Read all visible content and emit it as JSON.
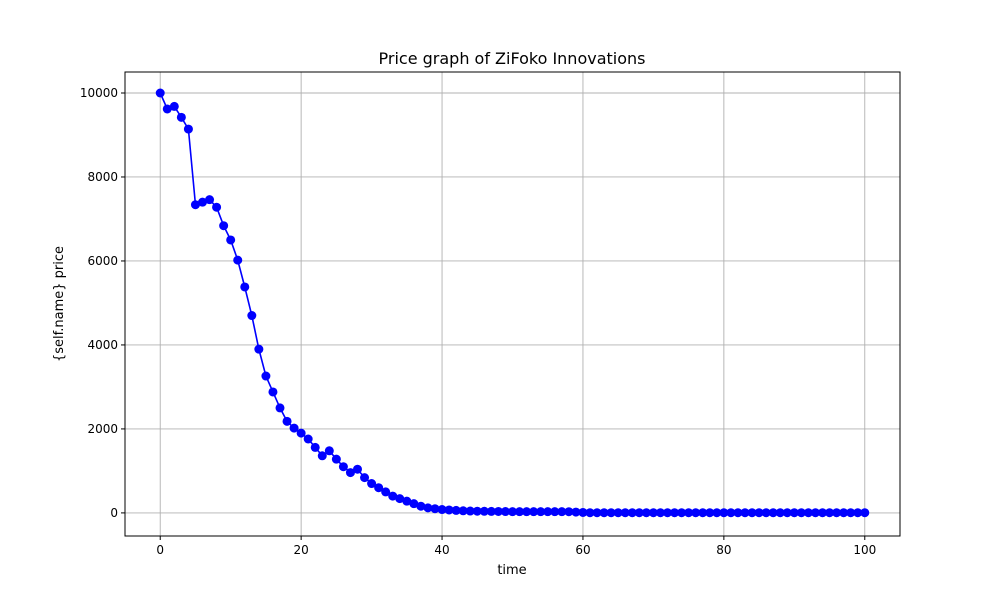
{
  "chart_data": {
    "type": "line",
    "title": "Price graph of ZiFoko Innovations",
    "xlabel": "time",
    "ylabel": "{self.name} price",
    "xlim": [
      -5,
      105
    ],
    "ylim": [
      -550,
      10500
    ],
    "xticks": [
      0,
      20,
      40,
      60,
      80,
      100
    ],
    "yticks": [
      0,
      2000,
      4000,
      6000,
      8000,
      10000
    ],
    "grid": true,
    "series": [
      {
        "color": "#0000ff",
        "marker": "circle",
        "x": [
          0,
          1,
          2,
          3,
          4,
          5,
          6,
          7,
          8,
          9,
          10,
          11,
          12,
          13,
          14,
          15,
          16,
          17,
          18,
          19,
          20,
          21,
          22,
          23,
          24,
          25,
          26,
          27,
          28,
          29,
          30,
          31,
          32,
          33,
          34,
          35,
          36,
          37,
          38,
          39,
          40,
          41,
          42,
          43,
          44,
          45,
          46,
          47,
          48,
          49,
          50,
          51,
          52,
          53,
          54,
          55,
          56,
          57,
          58,
          59,
          60,
          61,
          62,
          63,
          64,
          65,
          66,
          67,
          68,
          69,
          70,
          71,
          72,
          73,
          74,
          75,
          76,
          77,
          78,
          79,
          80,
          81,
          82,
          83,
          84,
          85,
          86,
          87,
          88,
          89,
          90,
          91,
          92,
          93,
          94,
          95,
          96,
          97,
          98,
          99,
          100
        ],
        "y": [
          10000,
          9620,
          9680,
          9420,
          9140,
          7340,
          7400,
          7460,
          7280,
          6840,
          6500,
          6020,
          5380,
          4700,
          3900,
          3260,
          2880,
          2500,
          2180,
          2020,
          1900,
          1760,
          1560,
          1360,
          1480,
          1280,
          1100,
          960,
          1040,
          840,
          700,
          600,
          500,
          400,
          340,
          280,
          220,
          160,
          120,
          100,
          80,
          70,
          60,
          50,
          45,
          40,
          38,
          36,
          34,
          32,
          30,
          30,
          30,
          30,
          30,
          30,
          30,
          30,
          28,
          20,
          10,
          5,
          5,
          5,
          5,
          5,
          5,
          5,
          5,
          5,
          5,
          5,
          5,
          5,
          5,
          5,
          5,
          5,
          5,
          5,
          5,
          5,
          5,
          5,
          5,
          5,
          5,
          5,
          5,
          5,
          5,
          5,
          5,
          5,
          5,
          5,
          5,
          5,
          5,
          5,
          5
        ]
      }
    ]
  }
}
